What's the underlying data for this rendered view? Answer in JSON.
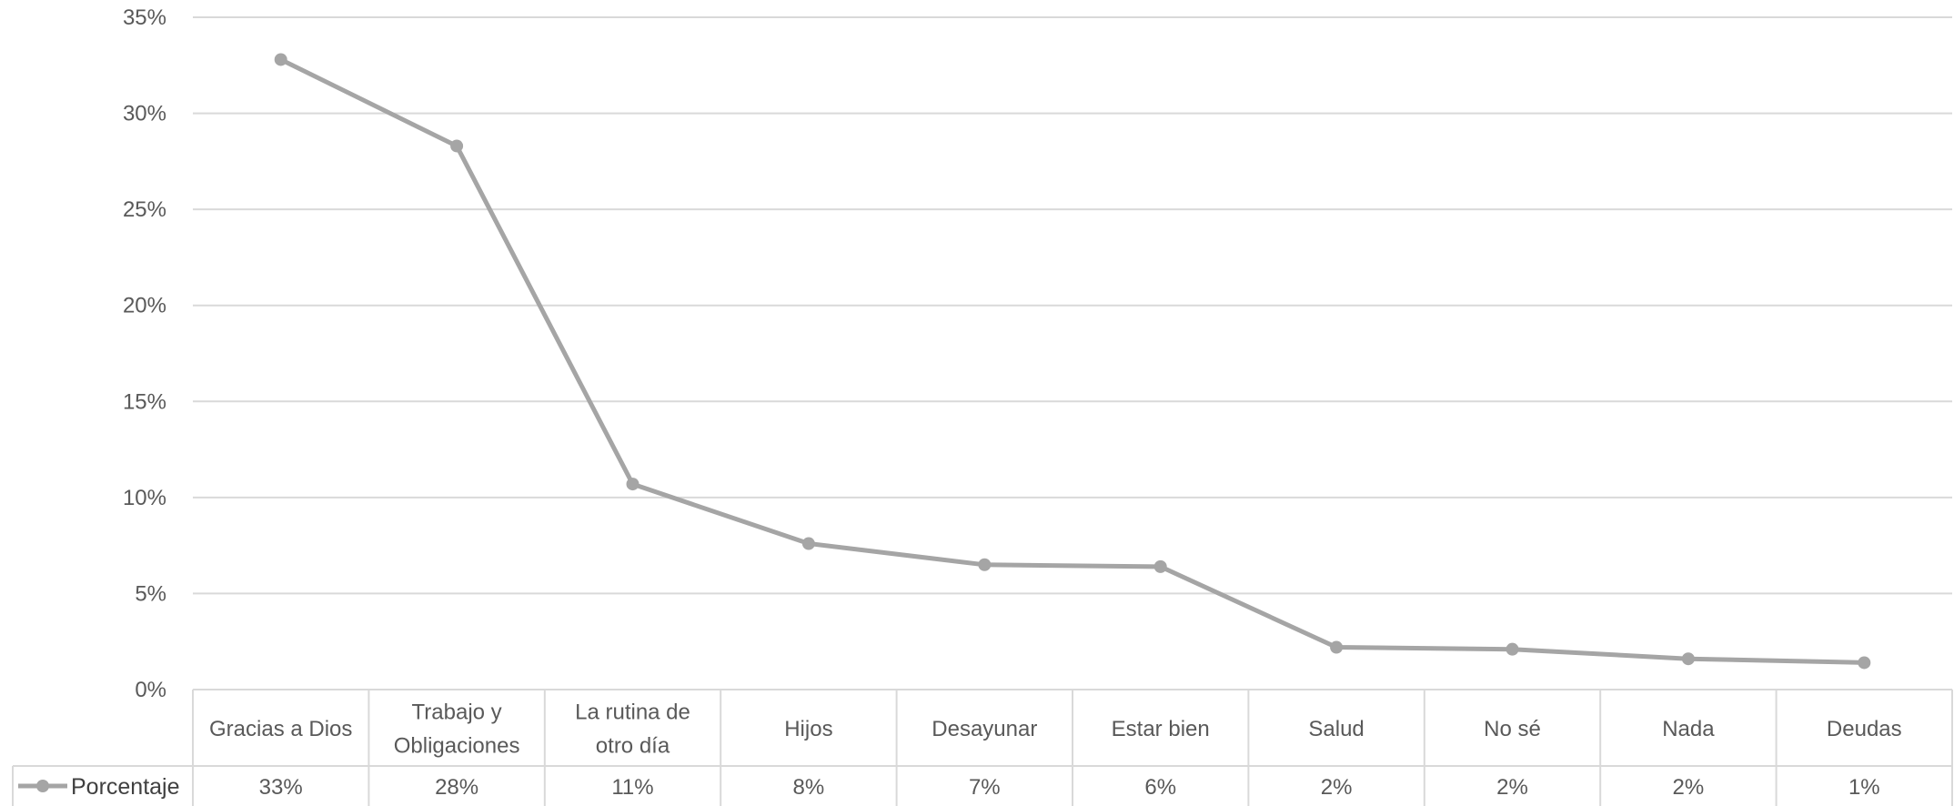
{
  "chart_data": {
    "type": "line",
    "categories": [
      [
        "Gracias a Dios"
      ],
      [
        "Trabajo y",
        "Obligaciones"
      ],
      [
        "La rutina de",
        "otro día"
      ],
      [
        "Hijos"
      ],
      [
        "Desayunar"
      ],
      [
        "Estar bien"
      ],
      [
        "Salud"
      ],
      [
        "No sé"
      ],
      [
        "Nada"
      ],
      [
        "Deudas"
      ]
    ],
    "series": [
      {
        "name": "Porcentaje",
        "values": [
          32.8,
          28.3,
          10.7,
          7.6,
          6.5,
          6.4,
          2.2,
          2.1,
          1.6,
          1.4
        ],
        "table_labels": [
          "33%",
          "28%",
          "11%",
          "8%",
          "7%",
          "6%",
          "2%",
          "2%",
          "2%",
          "1%"
        ]
      }
    ],
    "y_ticks": [
      "0%",
      "5%",
      "10%",
      "15%",
      "20%",
      "25%",
      "30%",
      "35%"
    ],
    "ylim": [
      0,
      35
    ],
    "grid": true,
    "data_table": true,
    "line_color": "#a5a5a5",
    "grid_color": "#d9d9d9"
  }
}
